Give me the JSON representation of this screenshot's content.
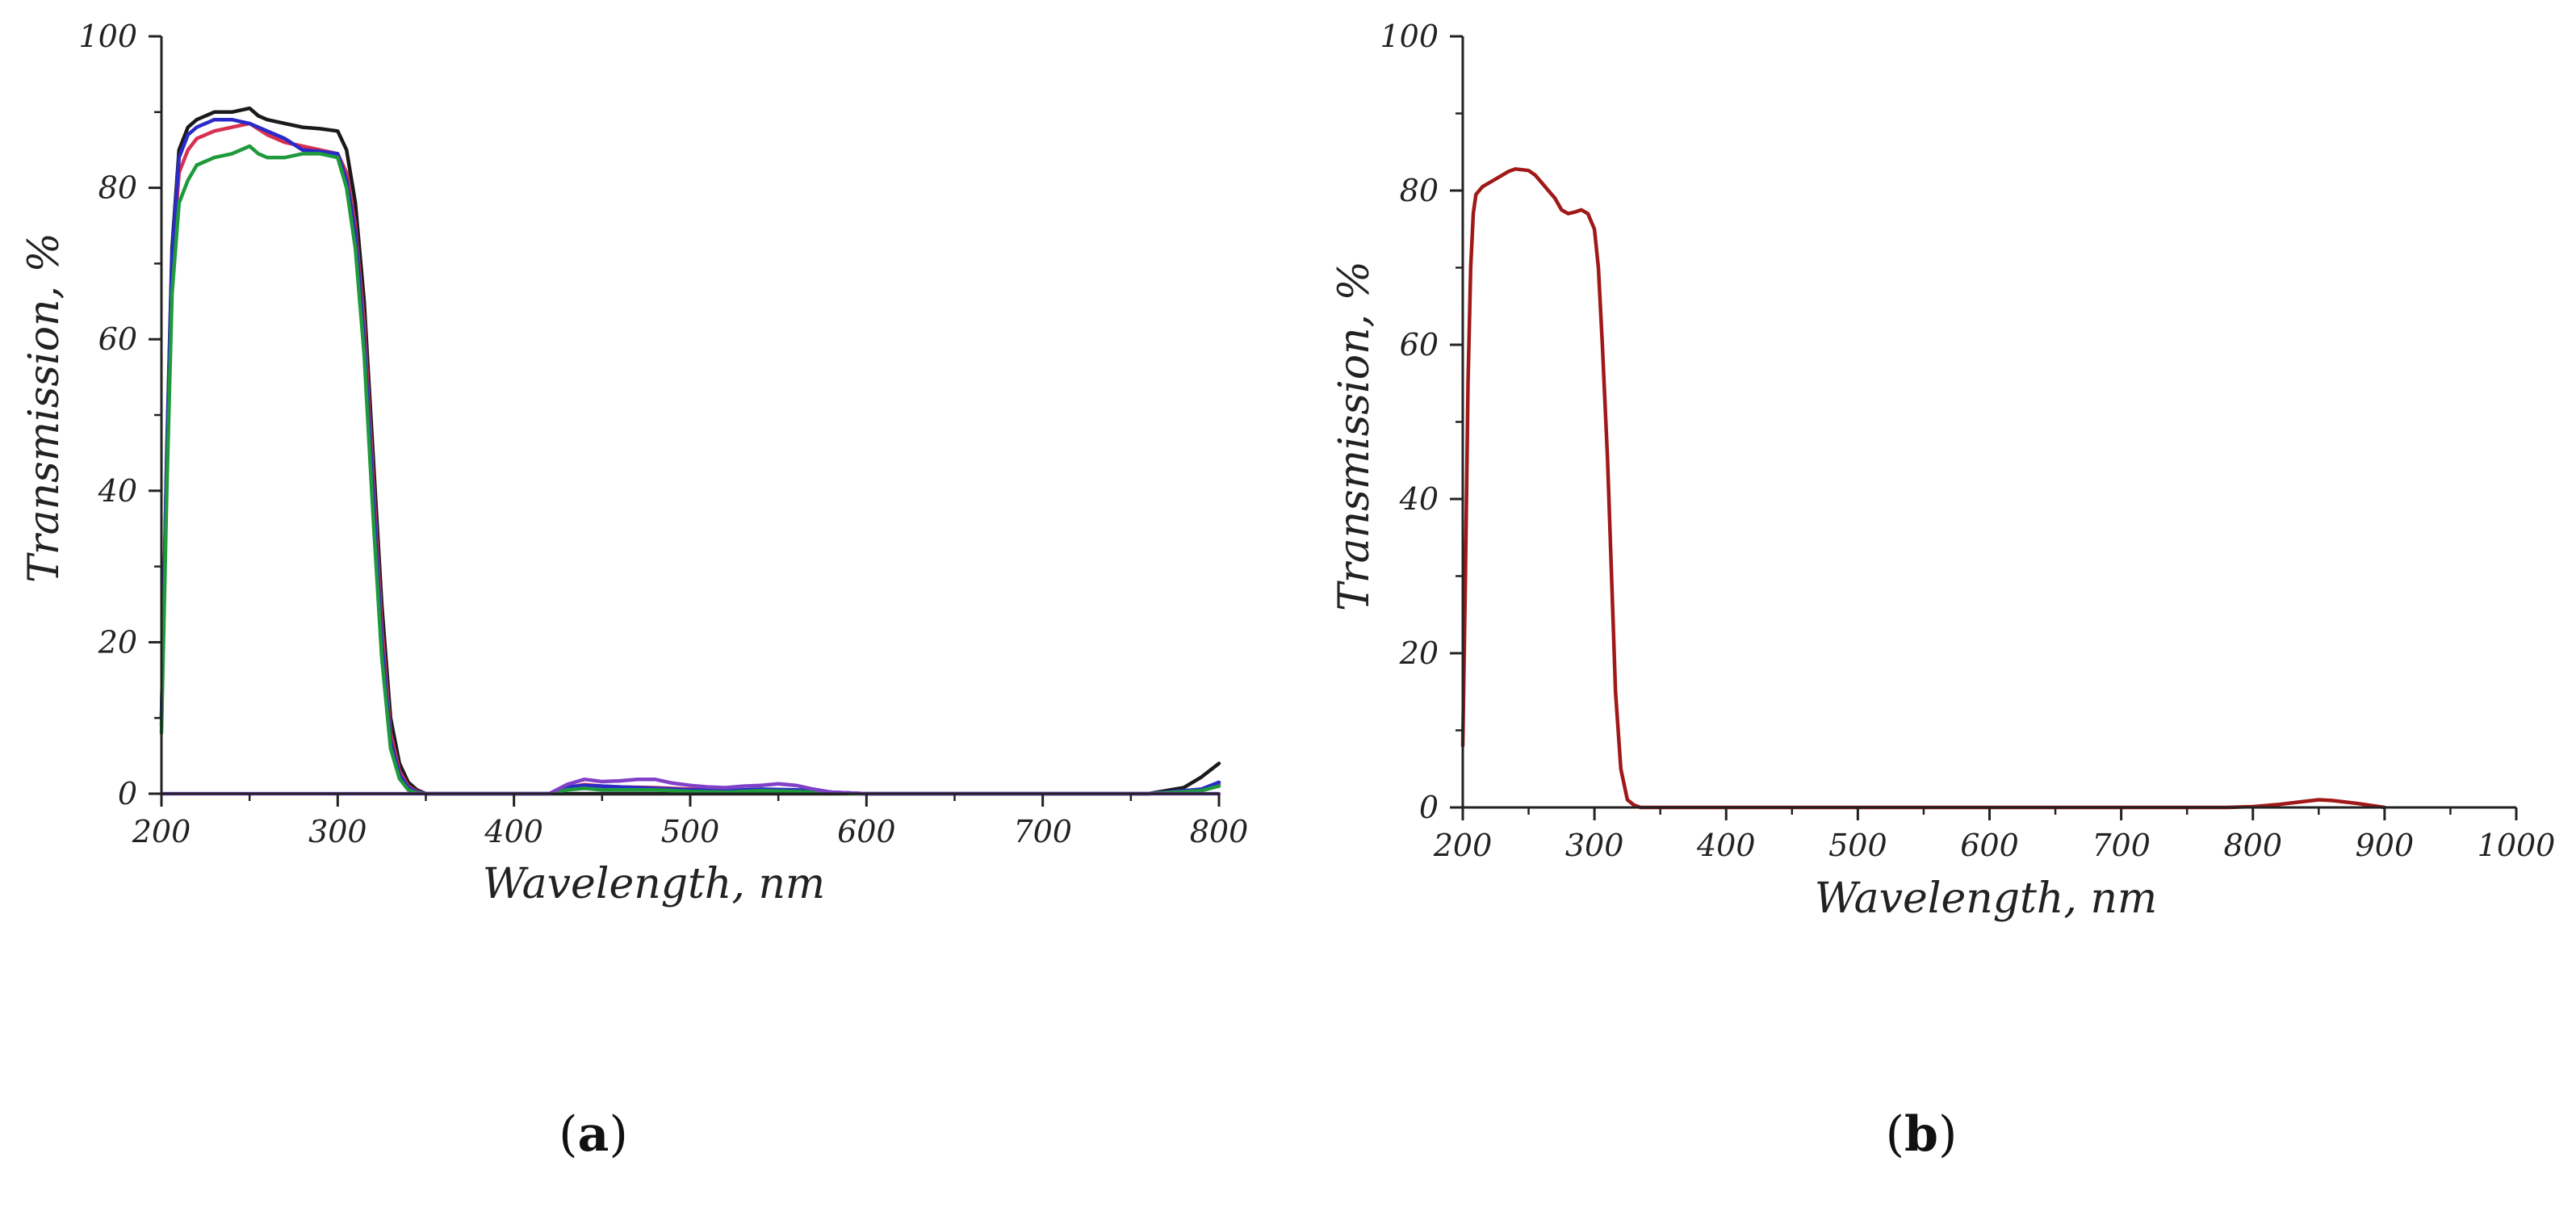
{
  "chart_data": [
    {
      "type": "line",
      "panel_label": "a",
      "xlabel": "Wavelength, nm",
      "ylabel": "Transmission, %",
      "xlim": [
        200,
        800
      ],
      "ylim": [
        0,
        100
      ],
      "xticks": [
        200,
        300,
        400,
        500,
        600,
        700,
        800
      ],
      "yticks": [
        0,
        20,
        40,
        60,
        80,
        100
      ],
      "grid": false,
      "series": [
        {
          "name": "black",
          "color": "#1a1a1a",
          "x": [
            200,
            203,
            206,
            210,
            215,
            220,
            230,
            240,
            250,
            255,
            260,
            270,
            280,
            290,
            300,
            305,
            310,
            315,
            320,
            325,
            330,
            335,
            340,
            345,
            350,
            360,
            400,
            420,
            500,
            600,
            700,
            760,
            780,
            790,
            800
          ],
          "y": [
            10,
            45,
            72,
            85,
            88,
            89,
            90,
            90,
            90.5,
            89.5,
            89,
            88.5,
            88,
            87.8,
            87.5,
            85,
            78,
            65,
            45,
            25,
            10,
            4,
            1.5,
            0.5,
            0,
            0,
            0,
            0,
            0,
            0,
            0,
            0,
            0.8,
            2.2,
            4
          ]
        },
        {
          "name": "red",
          "color": "#d83050",
          "x": [
            200,
            203,
            206,
            210,
            215,
            220,
            230,
            240,
            250,
            260,
            270,
            280,
            290,
            300,
            305,
            310,
            315,
            320,
            325,
            330,
            335,
            340,
            345,
            350,
            420,
            430,
            440,
            450,
            460,
            480,
            500,
            520,
            540,
            560,
            580,
            600,
            760,
            790,
            800
          ],
          "y": [
            9,
            43,
            70,
            82,
            85,
            86.5,
            87.5,
            88,
            88.5,
            87,
            86,
            85.5,
            85,
            84.5,
            82,
            75,
            62,
            42,
            22,
            8,
            3,
            1,
            0.3,
            0,
            0,
            0.8,
            1.2,
            1.0,
            0.9,
            0.8,
            0.6,
            0.4,
            0.5,
            0.4,
            0.2,
            0,
            0,
            0.5,
            1.2
          ]
        },
        {
          "name": "blue",
          "color": "#2a2ac8",
          "x": [
            200,
            203,
            206,
            210,
            215,
            220,
            230,
            240,
            250,
            260,
            270,
            280,
            290,
            300,
            305,
            310,
            315,
            320,
            325,
            330,
            335,
            340,
            345,
            350,
            420,
            430,
            440,
            450,
            460,
            480,
            500,
            520,
            540,
            560,
            580,
            600,
            760,
            790,
            800
          ],
          "y": [
            10,
            44,
            71,
            84,
            87,
            88,
            89,
            89,
            88.5,
            87.5,
            86.5,
            85,
            84.8,
            84.5,
            81,
            74,
            60,
            40,
            20,
            7,
            2.5,
            0.8,
            0.2,
            0,
            0,
            0.9,
            1.1,
            1.0,
            0.9,
            0.7,
            0.5,
            0.4,
            0.6,
            0.5,
            0.2,
            0,
            0,
            0.6,
            1.5
          ]
        },
        {
          "name": "green",
          "color": "#1e9a3c",
          "x": [
            200,
            203,
            206,
            210,
            215,
            220,
            230,
            240,
            250,
            255,
            260,
            270,
            280,
            290,
            300,
            305,
            310,
            315,
            320,
            325,
            330,
            335,
            340,
            345,
            350,
            420,
            430,
            440,
            450,
            480,
            500,
            520,
            540,
            560,
            580,
            600,
            760,
            790,
            800
          ],
          "y": [
            8,
            40,
            66,
            78,
            81,
            83,
            84,
            84.5,
            85.5,
            84.5,
            84,
            84,
            84.5,
            84.5,
            84,
            80,
            72,
            58,
            37,
            18,
            6,
            2,
            0.5,
            0.1,
            0,
            0,
            0.5,
            0.7,
            0.5,
            0.5,
            0.3,
            0.2,
            0.4,
            0.3,
            0.1,
            0,
            0,
            0.4,
            1.0
          ]
        },
        {
          "name": "violet",
          "color": "#8040c8",
          "x": [
            200,
            420,
            430,
            440,
            450,
            460,
            470,
            480,
            490,
            500,
            510,
            520,
            530,
            540,
            550,
            560,
            570,
            580,
            600,
            800
          ],
          "y": [
            0,
            0,
            1.2,
            1.9,
            1.6,
            1.7,
            1.9,
            1.9,
            1.4,
            1.1,
            0.9,
            0.8,
            1.0,
            1.1,
            1.3,
            1.1,
            0.6,
            0.2,
            0,
            0
          ]
        }
      ]
    },
    {
      "type": "line",
      "panel_label": "b",
      "xlabel": "Wavelength, nm",
      "ylabel": "Transmission, %",
      "xlim": [
        200,
        1000
      ],
      "ylim": [
        0,
        100
      ],
      "xticks": [
        200,
        300,
        400,
        500,
        600,
        700,
        800,
        900,
        1000
      ],
      "yticks": [
        0,
        20,
        40,
        60,
        80,
        100
      ],
      "grid": false,
      "series": [
        {
          "name": "dark red",
          "color": "#a01818",
          "x": [
            200,
            202,
            204,
            206,
            208,
            210,
            215,
            220,
            225,
            230,
            235,
            240,
            245,
            250,
            255,
            260,
            265,
            270,
            275,
            280,
            285,
            290,
            295,
            300,
            303,
            306,
            310,
            313,
            316,
            320,
            325,
            330,
            335,
            340,
            400,
            500,
            600,
            700,
            780,
            800,
            820,
            840,
            850,
            860,
            880,
            900
          ],
          "y": [
            8,
            30,
            55,
            70,
            77,
            79.5,
            80.5,
            81,
            81.5,
            82,
            82.5,
            82.8,
            82.7,
            82.6,
            82,
            81,
            80,
            79,
            77.5,
            77,
            77.2,
            77.5,
            77,
            75,
            70,
            60,
            45,
            30,
            15,
            5,
            1,
            0.3,
            0,
            0,
            0,
            0,
            0,
            0,
            0,
            0.1,
            0.4,
            0.8,
            1.0,
            0.9,
            0.5,
            0
          ]
        }
      ]
    }
  ]
}
